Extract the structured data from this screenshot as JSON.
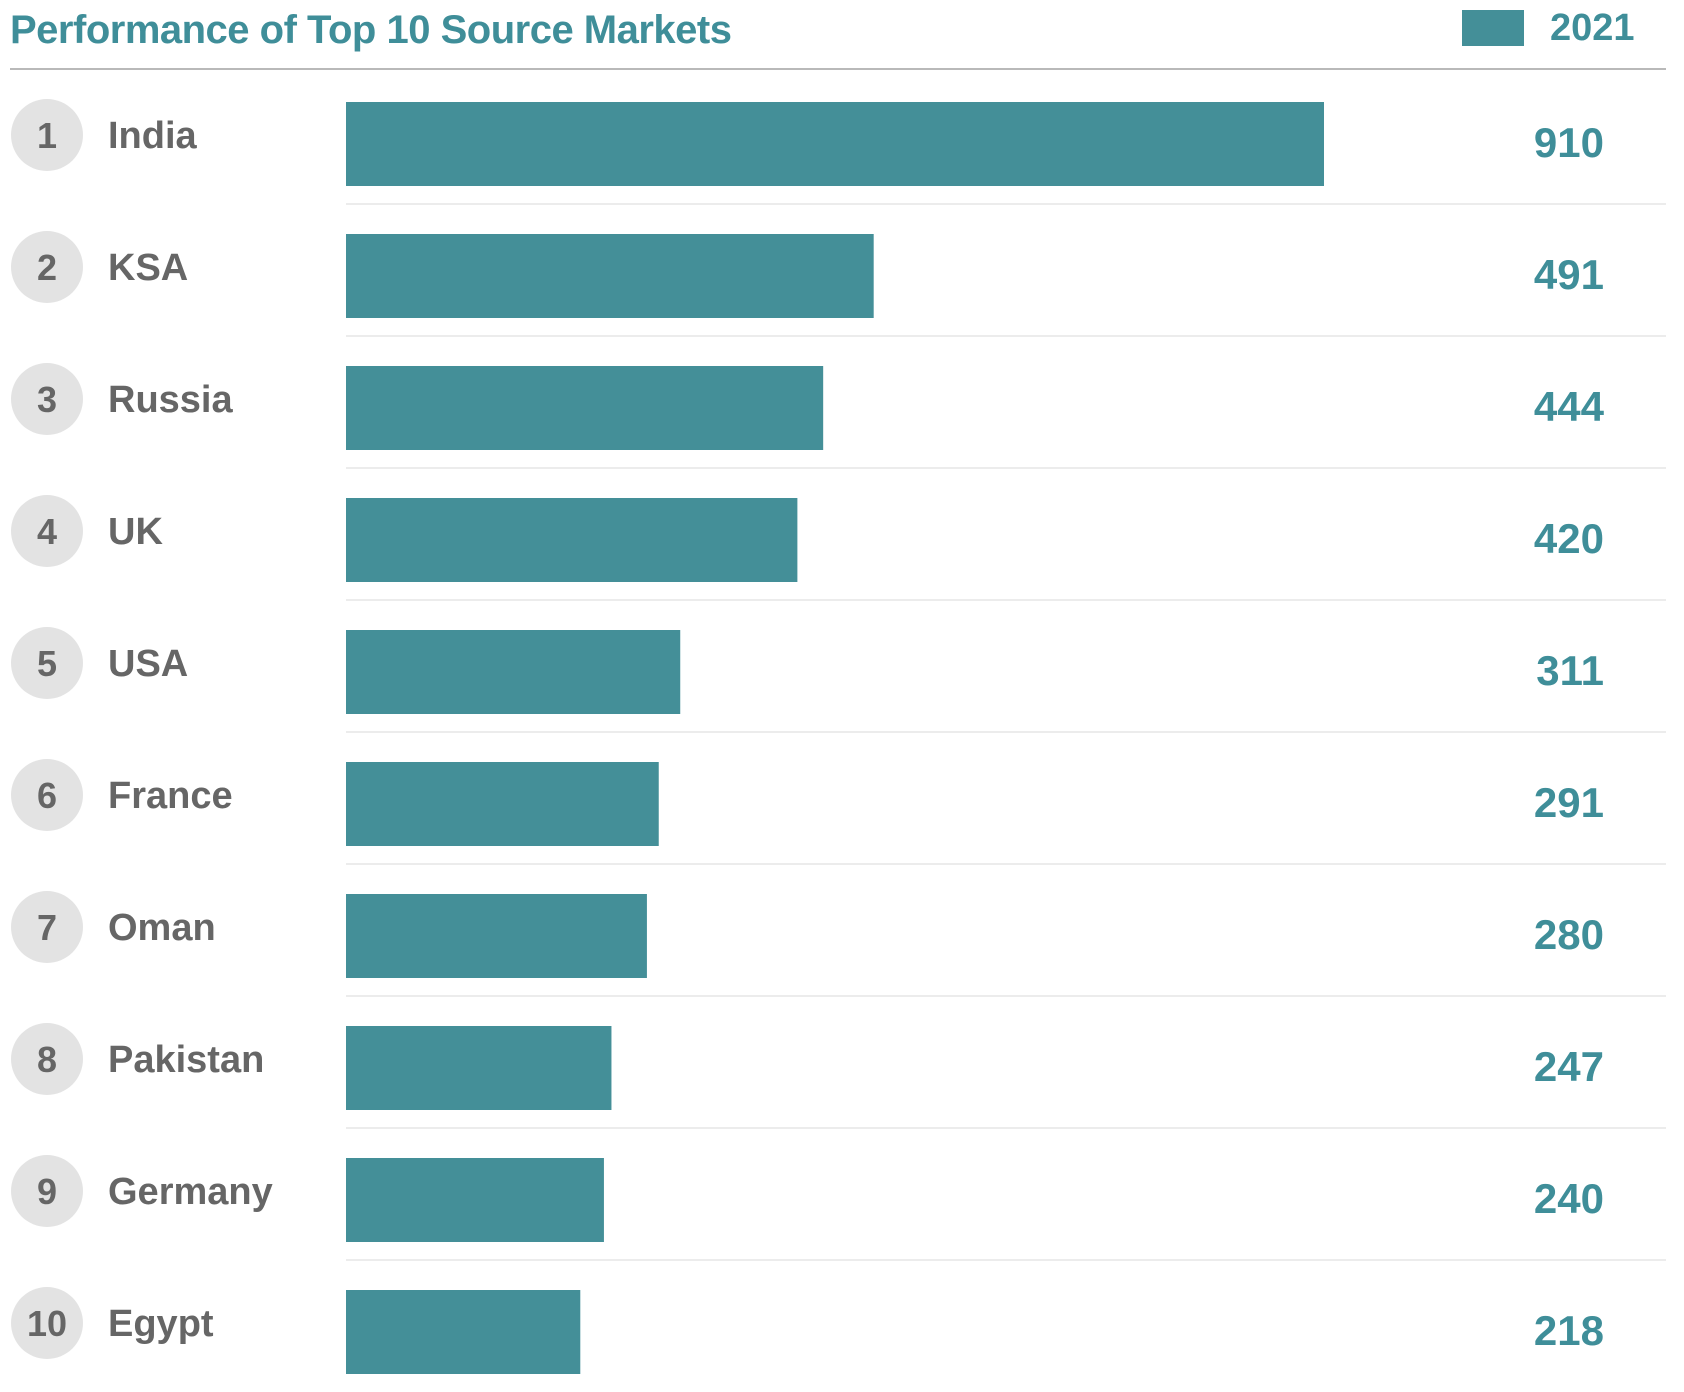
{
  "colors": {
    "accent": "#448f98",
    "title": "#3f8e99",
    "rank_circle": "#e3e3e3",
    "rank_text": "#666666",
    "label_text": "#666666",
    "separator": "#ececec"
  },
  "chart_data": {
    "type": "bar",
    "orientation": "horizontal",
    "title": "Performance of Top 10 Source Markets",
    "legend": {
      "label": "2021",
      "position": "top-right"
    },
    "series": [
      {
        "name": "2021"
      }
    ],
    "ranks": [
      "1",
      "2",
      "3",
      "4",
      "5",
      "6",
      "7",
      "8",
      "9",
      "10"
    ],
    "categories": [
      "India",
      "KSA",
      "Russia",
      "UK",
      "USA",
      "France",
      "Oman",
      "Pakistan",
      "Germany",
      "Egypt"
    ],
    "values": [
      910,
      491,
      444,
      420,
      311,
      291,
      280,
      247,
      240,
      218
    ],
    "value_labels": [
      "910",
      "491",
      "444",
      "420",
      "311",
      "291",
      "280",
      "247",
      "240",
      "218"
    ],
    "xlim": [
      0,
      910
    ],
    "grid": false
  }
}
